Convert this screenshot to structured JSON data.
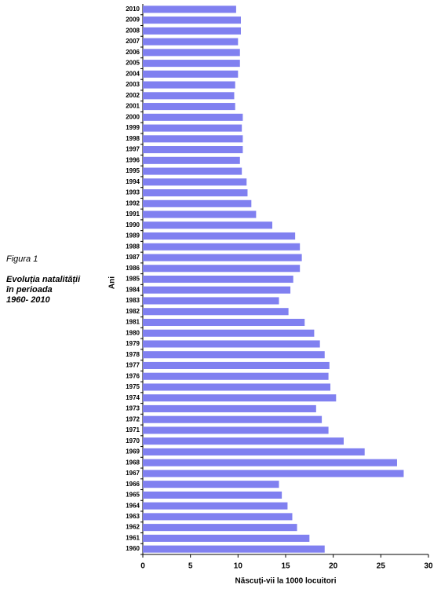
{
  "chart_data": {
    "type": "bar",
    "orientation": "horizontal",
    "figure_label": "Figura 1",
    "description": [
      "Evoluția natalității",
      "în perioada",
      "1960- 2010"
    ],
    "x_label": "Născuți-vii la 1000 locuitori",
    "y_label": "Ani",
    "categories": [
      "1960",
      "1961",
      "1962",
      "1963",
      "1964",
      "1965",
      "1966",
      "1967",
      "1968",
      "1969",
      "1970",
      "1971",
      "1972",
      "1973",
      "1974",
      "1975",
      "1976",
      "1977",
      "1978",
      "1979",
      "1980",
      "1981",
      "1982",
      "1983",
      "1984",
      "1985",
      "1986",
      "1987",
      "1988",
      "1989",
      "1990",
      "1991",
      "1992",
      "1993",
      "1994",
      "1995",
      "1996",
      "1997",
      "1998",
      "1999",
      "2000",
      "2001",
      "2002",
      "2003",
      "2004",
      "2005",
      "2006",
      "2007",
      "2008",
      "2009",
      "2010"
    ],
    "values": [
      19.1,
      17.5,
      16.2,
      15.7,
      15.2,
      14.6,
      14.3,
      27.4,
      26.7,
      23.3,
      21.1,
      19.5,
      18.8,
      18.2,
      20.3,
      19.7,
      19.5,
      19.6,
      19.1,
      18.6,
      18.0,
      17.0,
      15.3,
      14.3,
      15.5,
      15.8,
      16.5,
      16.7,
      16.5,
      16.0,
      13.6,
      11.9,
      11.4,
      11.0,
      10.9,
      10.4,
      10.2,
      10.5,
      10.5,
      10.4,
      10.5,
      9.7,
      9.6,
      9.7,
      10.0,
      10.2,
      10.2,
      10.0,
      10.3,
      10.3,
      9.8
    ],
    "color": "#8080f0",
    "xlim": [
      0,
      30
    ],
    "xticks": [
      0,
      5,
      10,
      15,
      20,
      25,
      30
    ],
    "grid": false
  }
}
